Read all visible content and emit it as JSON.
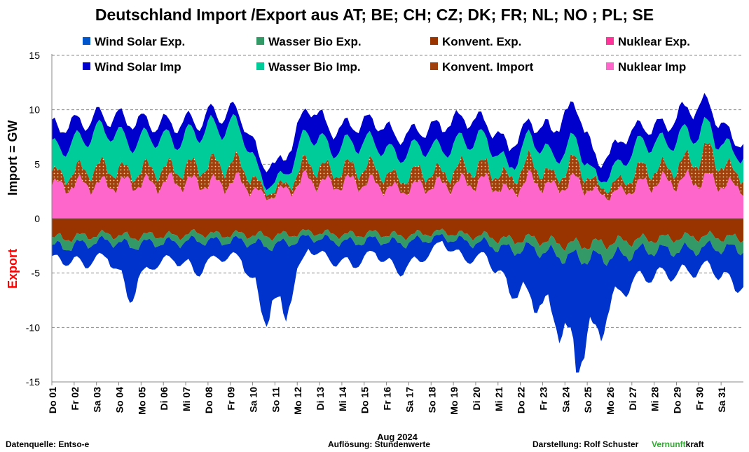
{
  "chart_data": {
    "type": "area",
    "title": "Deutschland Import /Export  aus AT;  BE;  CH;  CZ;  DK;  FR;  NL;  NO ;  PL;  SE",
    "ylabel_import": "Import    =  GW",
    "ylabel_export": "Export",
    "xlabel": "Aug 2024",
    "ylim": [
      -15,
      15
    ],
    "yticks": [
      "15",
      "10",
      "5",
      "0",
      "-5",
      "-10",
      "-15"
    ],
    "ytick_values": [
      15,
      10,
      5,
      0,
      -5,
      -10,
      -15
    ],
    "grid": "horizontal dashed",
    "legend_position": "top",
    "categories": [
      "Do 01",
      "Fr 02",
      "Sa 03",
      "So 04",
      "Mo 05",
      "Di 06",
      "Mi 07",
      "Do 08",
      "Fr 09",
      "Sa 10",
      "So 11",
      "Mo 12",
      "Di 13",
      "Mi 14",
      "Do 15",
      "Fr 16",
      "Sa 17",
      "So 18",
      "Mo 19",
      "Di 20",
      "Mi 21",
      "Do 22",
      "Fr 23",
      "Sa 24",
      "So 25",
      "Mo 26",
      "Di 27",
      "Mi 28",
      "Do 29",
      "Fr 30",
      "Sa 31"
    ],
    "series": [
      {
        "name": "Nuklear Imp",
        "color": "#ff66cc",
        "values": [
          3.0,
          3.2,
          3.1,
          3.3,
          3.2,
          3.4,
          3.3,
          3.2,
          3.4,
          2.0,
          2.6,
          3.7,
          3.1,
          3.4,
          3.2,
          2.6,
          3.0,
          3.1,
          3.3,
          3.4,
          2.4,
          3.6,
          2.8,
          3.5,
          2.2,
          2.4,
          3.2,
          3.4,
          3.5,
          3.6,
          2.9
        ]
      },
      {
        "name": "Konvent. Import",
        "color": "#a0400c",
        "values": [
          1.0,
          1.3,
          1.6,
          0.9,
          1.4,
          1.1,
          1.5,
          1.8,
          1.6,
          0.5,
          0.4,
          1.5,
          1.2,
          1.3,
          1.4,
          1.0,
          1.3,
          1.0,
          1.4,
          1.3,
          1.2,
          1.6,
          0.9,
          1.7,
          0.6,
          0.9,
          1.4,
          1.1,
          1.7,
          2.5,
          1.3
        ]
      },
      {
        "name": "Wasser Bio Imp.",
        "color": "#00cc99",
        "values": [
          2.5,
          3.0,
          3.6,
          2.7,
          3.0,
          2.6,
          3.2,
          3.5,
          3.4,
          0.5,
          1.0,
          3.0,
          2.0,
          2.3,
          2.4,
          2.1,
          2.4,
          2.2,
          2.5,
          2.6,
          1.0,
          2.4,
          1.8,
          2.0,
          0.5,
          1.8,
          2.5,
          2.4,
          2.6,
          2.1,
          1.8
        ]
      },
      {
        "name": "Wind Solar Imp",
        "color": "#0000cc",
        "values": [
          2.0,
          1.5,
          1.2,
          2.1,
          1.2,
          1.6,
          1.0,
          1.3,
          1.2,
          1.6,
          1.6,
          2.4,
          1.8,
          1.6,
          2.0,
          1.8,
          1.4,
          2.3,
          2.1,
          1.5,
          2.0,
          1.2,
          2.7,
          3.4,
          1.5,
          2.2,
          1.4,
          1.6,
          2.4,
          2.2,
          1.2
        ]
      },
      {
        "name": "Konvent. Exp.",
        "color": "#993300",
        "values": [
          -1.8,
          -1.6,
          -1.4,
          -1.7,
          -1.5,
          -1.6,
          -1.3,
          -1.5,
          -1.4,
          -1.6,
          -1.5,
          -1.2,
          -1.4,
          -1.5,
          -1.3,
          -1.6,
          -1.4,
          -1.2,
          -1.5,
          -1.6,
          -2.0,
          -1.8,
          -2.2,
          -2.4,
          -2.3,
          -2.1,
          -1.9,
          -1.8,
          -1.7,
          -1.6,
          -1.8
        ]
      },
      {
        "name": "Wasser Bio Exp.",
        "color": "#339966",
        "values": [
          -0.8,
          -0.7,
          -0.6,
          -0.8,
          -0.7,
          -0.6,
          -0.7,
          -0.6,
          -0.6,
          -0.9,
          -0.8,
          -0.5,
          -0.6,
          -0.7,
          -0.6,
          -0.7,
          -0.6,
          -0.5,
          -0.6,
          -0.7,
          -0.9,
          -0.9,
          -1.1,
          -1.2,
          -1.3,
          -1.3,
          -1.0,
          -1.1,
          -1.2,
          -1.0,
          -1.0
        ]
      },
      {
        "name": "Wind Solar Exp.",
        "color": "#0033cc",
        "values": [
          -1.2,
          -1.8,
          -1.4,
          -4.5,
          -2.0,
          -1.5,
          -2.8,
          -1.4,
          -1.6,
          -6.0,
          -5.8,
          -1.0,
          -1.8,
          -2.0,
          -1.2,
          -2.5,
          -1.8,
          -0.5,
          -1.6,
          -1.2,
          -3.5,
          -4.5,
          -5.5,
          -9.0,
          -6.5,
          -3.2,
          -2.4,
          -2.2,
          -2.0,
          -1.8,
          -3.2
        ]
      },
      {
        "name": "Nuklear Exp.",
        "color": "#ff3399",
        "values": [
          0,
          0,
          0,
          0,
          0,
          0,
          0,
          0,
          0,
          0,
          0,
          0,
          0,
          0,
          0,
          0,
          0,
          0,
          0,
          0,
          0,
          0,
          0,
          0,
          0,
          0,
          0,
          0,
          0,
          0,
          0
        ]
      }
    ]
  },
  "legend": [
    {
      "label": "Wind Solar Exp.",
      "color": "#0055cc"
    },
    {
      "label": "Wasser Bio Exp.",
      "color": "#339966"
    },
    {
      "label": "Konvent. Exp.",
      "color": "#993300"
    },
    {
      "label": "Nuklear Exp.",
      "color": "#ff3399"
    },
    {
      "label": "Wind Solar Imp",
      "color": "#0000cc"
    },
    {
      "label": "Wasser Bio Imp.",
      "color": "#00cc99"
    },
    {
      "label": "Konvent. Import",
      "color": "#a0400c"
    },
    {
      "label": "Nuklear Imp",
      "color": "#ff66cc"
    }
  ],
  "footer": {
    "source": "Datenquelle: Entso-e",
    "resolution": "Auflösung: Stundenwerte",
    "author": "Darstellung:  Rolf Schuster",
    "brand_green": "Vernunft",
    "brand_black": "kraft"
  },
  "colors": {
    "export_label": "#ff0000",
    "brand": "#33aa33"
  }
}
